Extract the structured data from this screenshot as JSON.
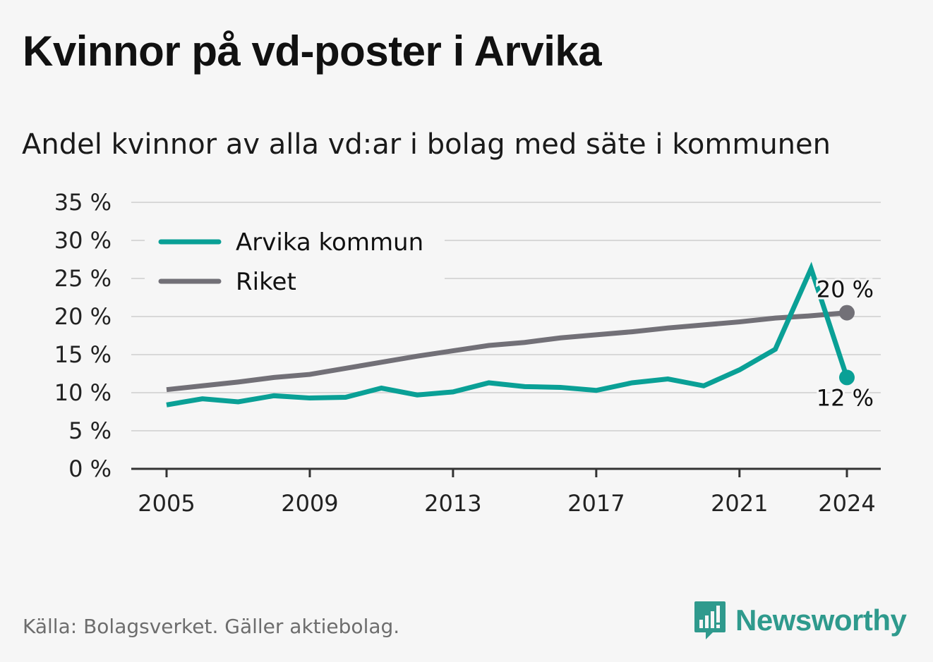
{
  "header": {
    "title": "Kvinnor på vd-poster i Arvika",
    "subtitle": "Andel kvinnor av alla vd:ar i bolag med säte i kommunen"
  },
  "footer": {
    "source": "Källa: Bolagsverket. Gäller aktiebolag.",
    "brand": "Newsworthy"
  },
  "colors": {
    "arvika": "#0aa096",
    "riket": "#727077",
    "grid": "#d8d8d8",
    "axis": "#333333",
    "brand": "#2f9a8d"
  },
  "chart_data": {
    "type": "line",
    "x": [
      2005,
      2006,
      2007,
      2008,
      2009,
      2010,
      2011,
      2012,
      2013,
      2014,
      2015,
      2016,
      2017,
      2018,
      2019,
      2020,
      2021,
      2022,
      2023,
      2024
    ],
    "x_ticks": [
      "2005",
      "2009",
      "2013",
      "2017",
      "2021",
      "2024"
    ],
    "y_ticks": [
      "0 %",
      "5 %",
      "10 %",
      "15 %",
      "20 %",
      "25 %",
      "30 %",
      "35 %"
    ],
    "ylim": [
      0,
      35
    ],
    "grid": true,
    "legend_position": "top-left",
    "series": [
      {
        "name": "Arvika kommun",
        "values": [
          8.4,
          9.2,
          8.8,
          9.6,
          9.3,
          9.4,
          10.6,
          9.7,
          10.1,
          11.3,
          10.8,
          10.7,
          10.3,
          11.3,
          11.8,
          10.9,
          13.0,
          15.7,
          26.3,
          12.0
        ],
        "end_label": "12 %"
      },
      {
        "name": "Riket",
        "values": [
          10.4,
          10.9,
          11.4,
          12.0,
          12.4,
          13.2,
          14.0,
          14.8,
          15.5,
          16.2,
          16.6,
          17.2,
          17.6,
          18.0,
          18.5,
          18.9,
          19.3,
          19.8,
          20.1,
          20.5
        ],
        "end_label": "20 %"
      }
    ]
  }
}
